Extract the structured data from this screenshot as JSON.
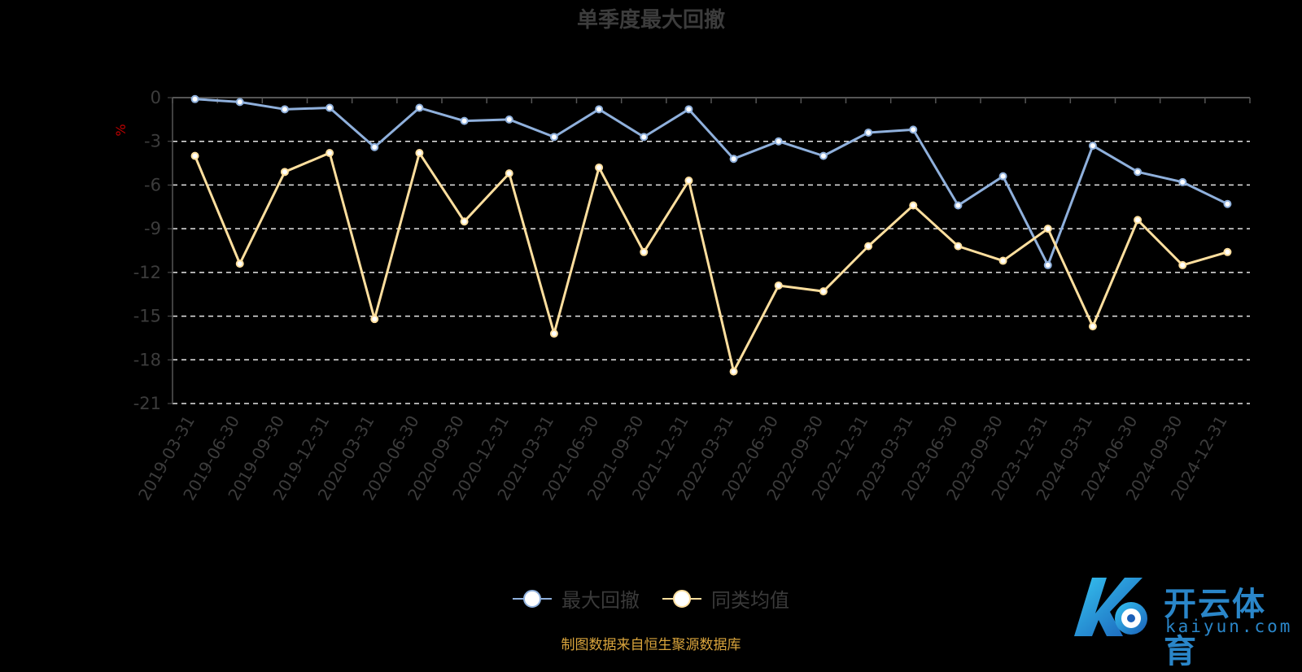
{
  "chart_data": {
    "type": "line",
    "title": "单季度最大回撤",
    "ylabel": "%",
    "ylim": [
      -21,
      0
    ],
    "yticks": [
      0,
      -3,
      -6,
      -9,
      -12,
      -15,
      -18,
      -21
    ],
    "grid": true,
    "legend_position": "bottom",
    "categories": [
      "2019-03-31",
      "2019-06-30",
      "2019-09-30",
      "2019-12-31",
      "2020-03-31",
      "2020-06-30",
      "2020-09-30",
      "2020-12-31",
      "2021-03-31",
      "2021-06-30",
      "2021-09-30",
      "2021-12-31",
      "2022-03-31",
      "2022-06-30",
      "2022-09-30",
      "2022-12-31",
      "2023-03-31",
      "2023-06-30",
      "2023-09-30",
      "2023-12-31",
      "2024-03-31",
      "2024-06-30",
      "2024-09-30",
      "2024-12-31"
    ],
    "series": [
      {
        "name": "最大回撤",
        "color": "#8fb0dc",
        "values": [
          -0.1,
          -0.3,
          -0.8,
          -0.7,
          -3.4,
          -0.7,
          -1.6,
          -1.5,
          -2.7,
          -0.8,
          -2.7,
          -0.8,
          -4.2,
          -3.0,
          -4.0,
          -2.4,
          -2.2,
          -7.4,
          -5.4,
          -11.5,
          -3.3,
          -5.1,
          -5.8,
          -7.3
        ]
      },
      {
        "name": "同类均值",
        "color": "#ffdf9e",
        "values": [
          -4.0,
          -11.4,
          -5.1,
          -3.8,
          -15.2,
          -3.8,
          -8.5,
          -5.2,
          -16.2,
          -4.8,
          -10.6,
          -5.7,
          -18.8,
          -12.9,
          -13.3,
          -10.2,
          -7.4,
          -10.2,
          -11.2,
          -9.0,
          -15.7,
          -8.4,
          -11.5,
          -10.6
        ]
      }
    ]
  },
  "source_note": "制图数据来自恒生聚源数据库",
  "watermark": {
    "text": "开云体育",
    "sub": "kaiyun.com"
  }
}
